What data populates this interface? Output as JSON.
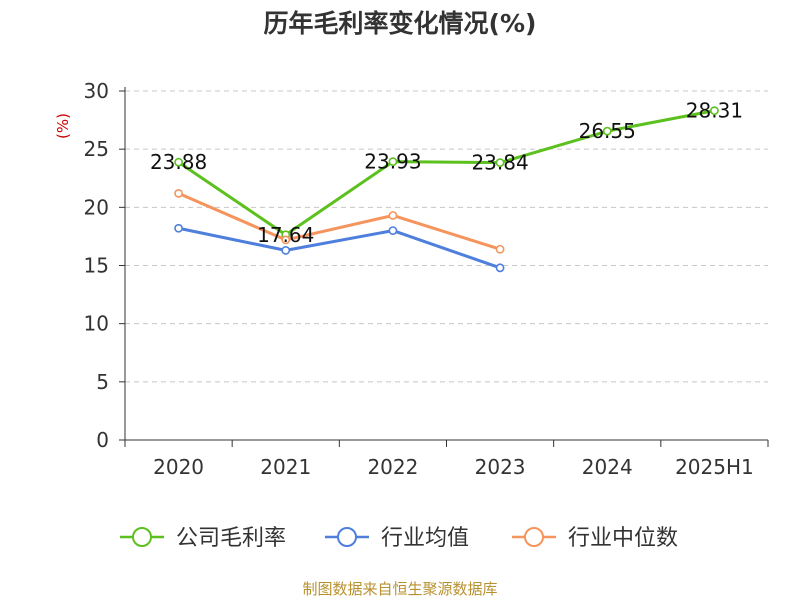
{
  "title": "历年毛利率变化情况(%)",
  "source": "制图数据来自恒生聚源数据库",
  "chart_data": {
    "type": "line",
    "title": "历年毛利率变化情况(%)",
    "ylabel": "(%)",
    "xlabel": "",
    "categories": [
      "2020",
      "2021",
      "2022",
      "2023",
      "2024",
      "2025H1"
    ],
    "ylim": [
      0,
      30
    ],
    "yticks": [
      0,
      5,
      10,
      15,
      20,
      25,
      30
    ],
    "grid": "horizontal-dashed",
    "legend_position": "bottom",
    "series": [
      {
        "name": "公司毛利率",
        "color": "#5cc01e",
        "values": [
          23.88,
          17.64,
          23.93,
          23.84,
          26.55,
          28.31
        ],
        "data_labels": [
          "23.88",
          "17.64",
          "23.93",
          "23.84",
          "26.55",
          "28.31"
        ]
      },
      {
        "name": "行业均值",
        "color": "#4e7fdc",
        "values": [
          18.2,
          16.3,
          18.0,
          14.8,
          null,
          null
        ]
      },
      {
        "name": "行业中位数",
        "color": "#f5945c",
        "values": [
          21.2,
          17.2,
          19.3,
          16.4,
          null,
          null
        ]
      }
    ]
  }
}
